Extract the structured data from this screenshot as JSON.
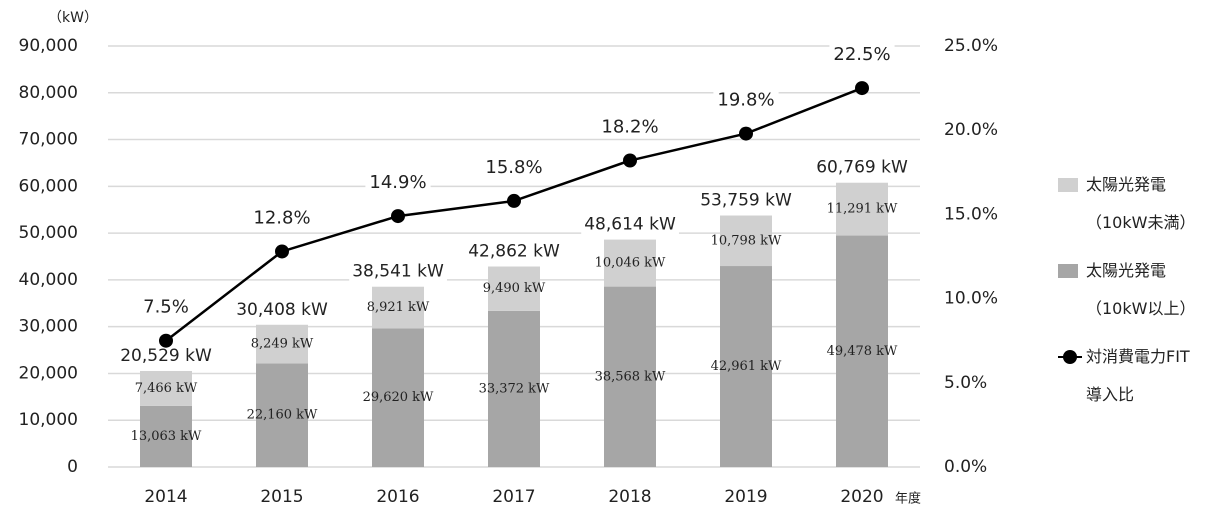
{
  "chart_data": {
    "type": "stacked-bar-line",
    "y_unit": "（kW）",
    "x_unit": "年度",
    "categories": [
      "2014",
      "2015",
      "2016",
      "2017",
      "2018",
      "2019",
      "2020"
    ],
    "series": [
      {
        "name": "太陽光発電\n（10kW以上）",
        "color": "#a6a6a6",
        "values": [
          13063,
          22160,
          29620,
          33372,
          38568,
          42961,
          49478
        ],
        "value_labels": [
          "13,063 kW",
          "22,160 kW",
          "29,620 kW",
          "33,372 kW",
          "38,568 kW",
          "42,961 kW",
          "49,478 kW"
        ]
      },
      {
        "name": "太陽光発電\n（10kW未満）",
        "color": "#d0d0d0",
        "values": [
          7466,
          8249,
          8921,
          9490,
          10046,
          10798,
          11291
        ],
        "value_labels": [
          "7,466 kW",
          "8,249 kW",
          "8,921 kW",
          "9,490 kW",
          "10,046 kW",
          "10,798 kW",
          "11,291 kW"
        ]
      },
      {
        "name": "対消費電力FIT\n導入比",
        "color": "#000000",
        "axis": "y2",
        "values": [
          7.5,
          12.8,
          14.9,
          15.8,
          18.2,
          19.8,
          22.5
        ],
        "value_labels": [
          "7.5%",
          "12.8%",
          "14.9%",
          "15.8%",
          "18.2%",
          "19.8%",
          "22.5%"
        ]
      }
    ],
    "total_labels": [
      "20,529 kW",
      "30,408 kW",
      "38,541 kW",
      "42,862 kW",
      "48,614 kW",
      "53,759 kW",
      "60,769 kW"
    ],
    "ylim": [
      0,
      90000
    ],
    "yticks": [
      0,
      {
        "value": 10000,
        "label": "10,000"
      },
      {
        "value": 20000,
        "label": "20,000"
      },
      {
        "value": 30000,
        "label": "30,000"
      },
      {
        "value": 40000,
        "label": "40,000"
      },
      {
        "value": 50000,
        "label": "50,000"
      },
      {
        "value": 60000,
        "label": "60,000"
      },
      {
        "value": 70000,
        "label": "70,000"
      },
      {
        "value": 80000,
        "label": "80,000"
      },
      {
        "value": 90000,
        "label": "90,000"
      }
    ],
    "y2lim": [
      0,
      25
    ],
    "y2ticks": [
      {
        "value": 0,
        "label": "0.0%"
      },
      {
        "value": 5,
        "label": "5.0%"
      },
      {
        "value": 10,
        "label": "10.0%"
      },
      {
        "value": 15,
        "label": "15.0%"
      },
      {
        "value": 20,
        "label": "20.0%"
      },
      {
        "value": 25,
        "label": "25.0%"
      }
    ],
    "grid": true,
    "legend": "right"
  }
}
